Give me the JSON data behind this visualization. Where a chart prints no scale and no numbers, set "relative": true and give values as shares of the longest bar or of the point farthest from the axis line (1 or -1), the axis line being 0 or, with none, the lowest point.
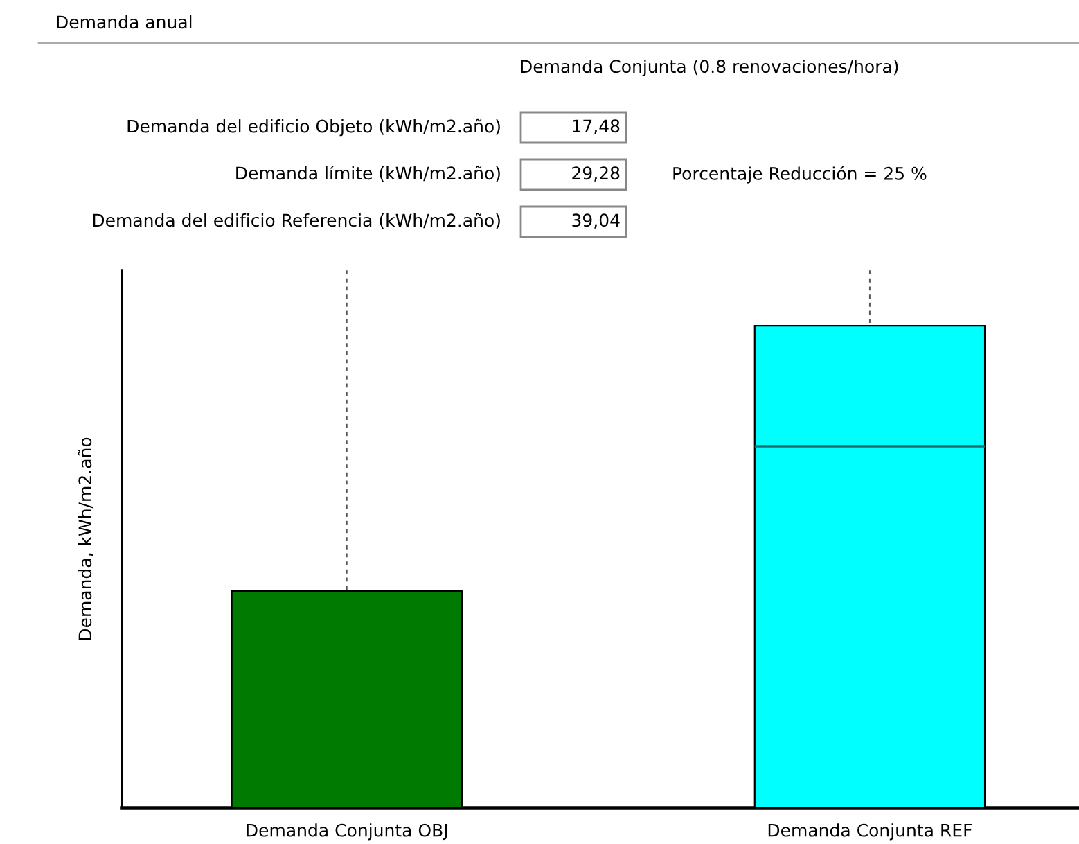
{
  "chart_data": {
    "type": "bar",
    "title": "Demanda anual",
    "subtitle": "Demanda Conjunta (0.8 renovaciones/hora)",
    "ylabel": "Demanda, kWh/m2.año",
    "categories": [
      "Demanda Conjunta OBJ",
      "Demanda Conjunta REF"
    ],
    "values": [
      0.45,
      1
    ],
    "colors": [
      "#007a00",
      "#00ffff"
    ],
    "relative": true,
    "ref_lines": [
      {
        "axis": "y",
        "value": 0.75,
        "color": "#1f6f6f"
      }
    ],
    "annotations": [
      "Demanda del edificio Objeto (kWh/m2.año)",
      "17,48",
      "Demanda límite (kWh/m2.año)",
      "29,28",
      "Demanda del edificio Referencia (kWh/m2.año)",
      "39,04",
      "Porcentaje Reducción = 25 %"
    ],
    "grid": "x"
  }
}
